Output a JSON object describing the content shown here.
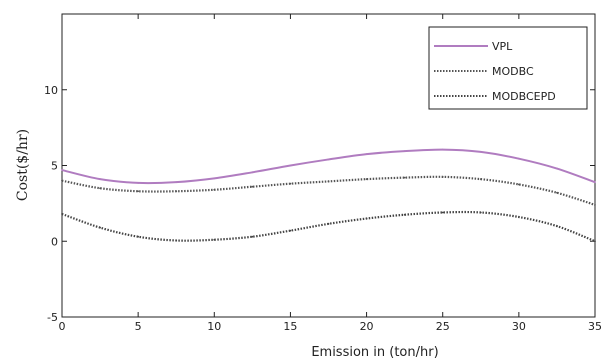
{
  "chart_data": {
    "type": "line",
    "title": "",
    "xlabel": "Emission in (ton/hr)",
    "ylabel": "Cost($/hr)",
    "xlim": [
      0,
      35
    ],
    "ylim": [
      -5,
      15
    ],
    "xticks": [
      0,
      5,
      10,
      15,
      20,
      25,
      30,
      35
    ],
    "yticks": [
      -5,
      0,
      5,
      10
    ],
    "grid": false,
    "legend_position": "top-right",
    "series": [
      {
        "name": "VPL",
        "color": "#b07cc0",
        "style": "solid",
        "x": [
          0,
          2.5,
          5,
          7.5,
          10,
          12.5,
          15,
          17.5,
          20,
          22.5,
          25,
          27.5,
          30,
          32.5,
          35
        ],
        "y": [
          4.7,
          4.1,
          3.85,
          3.9,
          4.15,
          4.55,
          5.0,
          5.4,
          5.75,
          5.95,
          6.05,
          5.9,
          5.45,
          4.8,
          3.9
        ]
      },
      {
        "name": "MODBC",
        "color": "#555555",
        "style": "dotted",
        "x": [
          0,
          2.5,
          5,
          7.5,
          10,
          12.5,
          15,
          17.5,
          20,
          22.5,
          25,
          27.5,
          30,
          32.5,
          35
        ],
        "y": [
          4.0,
          3.5,
          3.3,
          3.3,
          3.4,
          3.6,
          3.8,
          3.95,
          4.1,
          4.2,
          4.25,
          4.1,
          3.75,
          3.2,
          2.4
        ]
      },
      {
        "name": "MODBCEPD",
        "color": "#444444",
        "style": "dotted",
        "x": [
          0,
          2.5,
          5,
          7.5,
          10,
          12.5,
          15,
          17.5,
          20,
          22.5,
          25,
          27.5,
          30,
          32.5,
          35
        ],
        "y": [
          1.8,
          0.9,
          0.3,
          0.05,
          0.1,
          0.3,
          0.7,
          1.15,
          1.5,
          1.75,
          1.9,
          1.9,
          1.6,
          1.0,
          0.0
        ]
      }
    ]
  }
}
